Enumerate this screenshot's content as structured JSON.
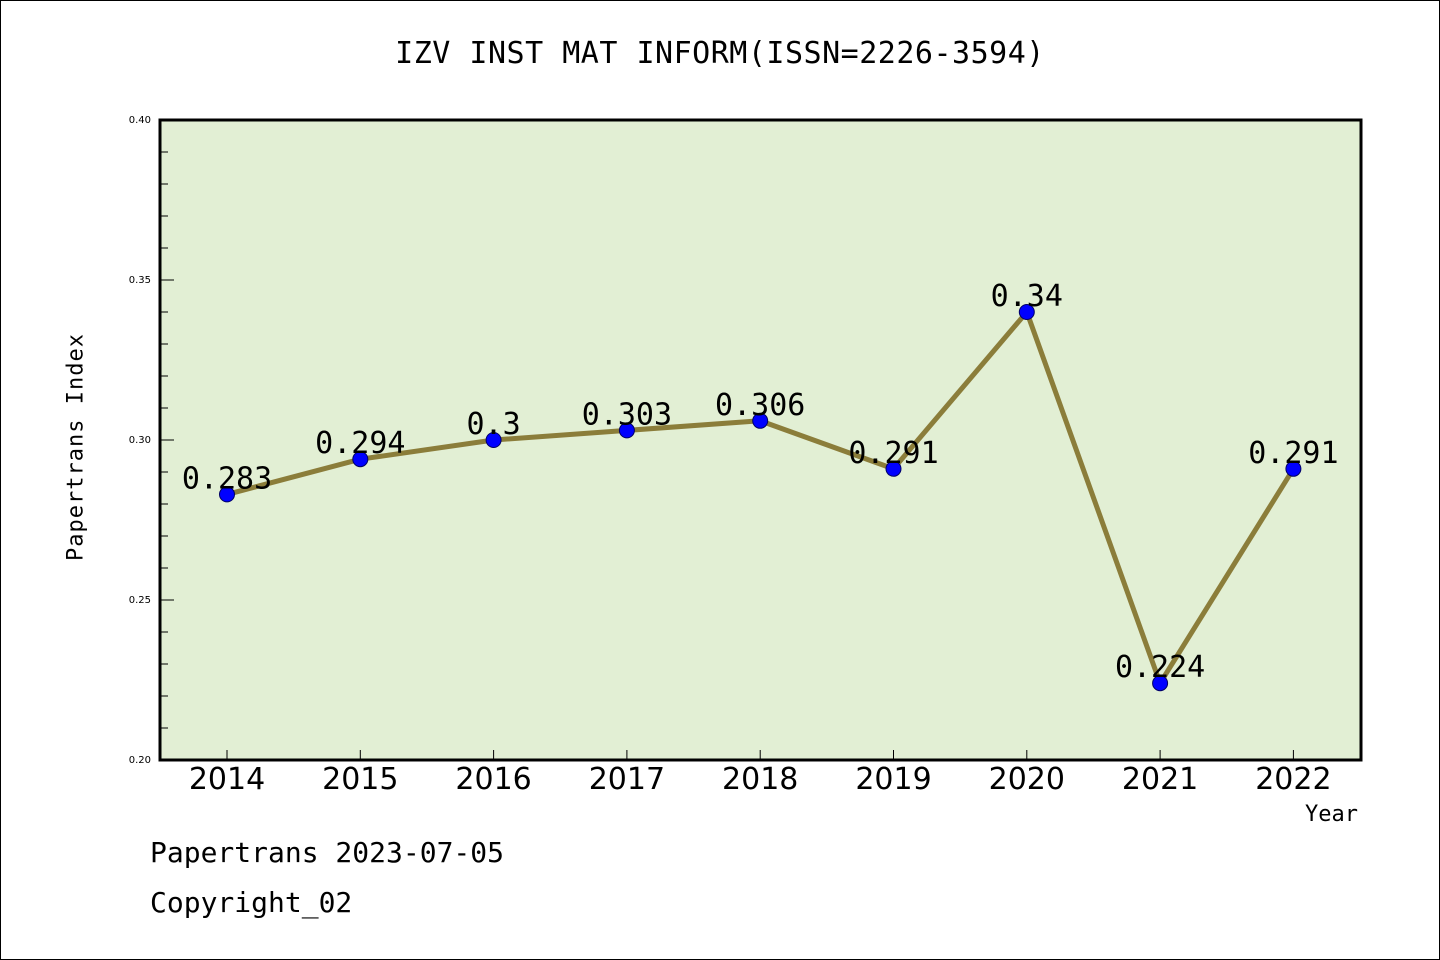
{
  "page": {
    "footer_date": "Papertrans 2023-07-05",
    "footer_copyright": "Copyright_02"
  },
  "chart_data": {
    "type": "line",
    "title": "IZV INST MAT INFORM(ISSN=2226-3594)",
    "xlabel": "Year",
    "ylabel": "Papertrans Index",
    "categories": [
      "2014",
      "2015",
      "2016",
      "2017",
      "2018",
      "2019",
      "2020",
      "2021",
      "2022"
    ],
    "series": [
      {
        "values": [
          0.283,
          0.294,
          0.3,
          0.303,
          0.306,
          0.291,
          0.34,
          0.224,
          0.291
        ],
        "data_labels": [
          "0.283",
          "0.294",
          "0.3",
          "0.303",
          "0.306",
          "0.291",
          "0.34",
          "0.224",
          "0.291"
        ]
      }
    ],
    "ylim": [
      0.2,
      0.4
    ],
    "y_ticks": [
      "0.20",
      "0.25",
      "0.30",
      "0.35",
      "0.40"
    ],
    "grid": false,
    "legend": "none",
    "colors": {
      "plot_background": "#e2efd4",
      "line": "#8b7d3a",
      "marker": "#0000ff",
      "axis": "#000000"
    }
  }
}
